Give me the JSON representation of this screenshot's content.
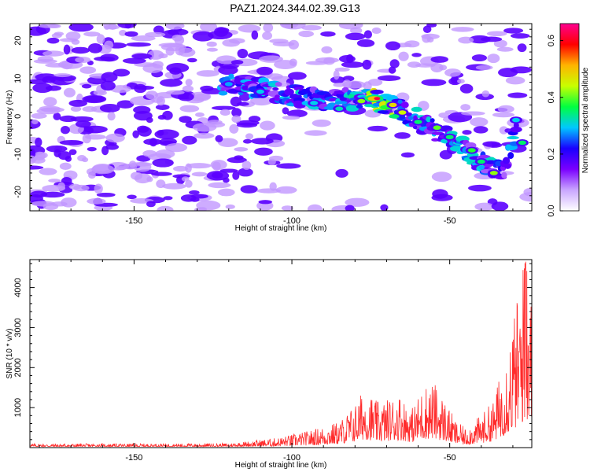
{
  "title": "PAZ1.2024.344.02.39.G13",
  "chart_data": [
    {
      "type": "heatmap",
      "xlabel": "Height of straight line (km)",
      "ylabel": "Frequency (Hz)",
      "xticks": [
        -150,
        -100,
        -50
      ],
      "yticks": [
        -20,
        -10,
        0,
        10,
        20
      ],
      "xlim": [
        -183,
        -24
      ],
      "ylim": [
        -25,
        24.5
      ],
      "colorbar": {
        "label": "Normalized spectral amplitude",
        "ticks": [
          0.0,
          0.2,
          0.4,
          0.6
        ],
        "ticklabels": [
          "0.0",
          "0.2",
          "0.4",
          "0.6"
        ],
        "range": [
          0,
          0.66
        ],
        "colors": [
          "#ffffff",
          "#c9a6ff",
          "#7a00ff",
          "#1a00ff",
          "#00c8ff",
          "#00ff40",
          "#c8ff00",
          "#ffb400",
          "#ff0000",
          "#ff0090"
        ]
      },
      "ridge": {
        "description_points": [
          [
            -122,
            8.5
          ],
          [
            -110,
            7.5
          ],
          [
            -100,
            5.5
          ],
          [
            -90,
            4.5
          ],
          [
            -80,
            4.5
          ],
          [
            -74,
            4.5
          ],
          [
            -68,
            2.5
          ],
          [
            -62,
            0
          ],
          [
            -56,
            -3
          ],
          [
            -50,
            -6
          ],
          [
            -44,
            -9.5
          ],
          [
            -38,
            -13
          ],
          [
            -33,
            -15
          ],
          [
            -28,
            -2
          ]
        ],
        "peak": [
          -73,
          4.7,
          0.62
        ]
      }
    },
    {
      "type": "line",
      "xlabel": "Height of straight line (km)",
      "ylabel": "SNR (10 * v/v)",
      "xticks": [
        -150,
        -100,
        -50
      ],
      "yticks": [
        1000,
        2000,
        3000,
        4000
      ],
      "xlim": [
        -183,
        -24
      ],
      "ylim": [
        0,
        4700
      ],
      "series_color": "#ff2a2a",
      "envelope_x": [
        -183,
        -150,
        -120,
        -105,
        -95,
        -85,
        -80,
        -77,
        -73,
        -70,
        -66,
        -62,
        -58,
        -55,
        -52,
        -48,
        -45,
        -40,
        -36,
        -33,
        -30,
        -28,
        -26,
        -24
      ],
      "envelope_y": [
        90,
        90,
        100,
        220,
        380,
        600,
        1000,
        1380,
        1050,
        1100,
        1250,
        900,
        1450,
        1500,
        1150,
        600,
        450,
        750,
        1100,
        2000,
        3000,
        3600,
        4700,
        3400
      ]
    }
  ]
}
